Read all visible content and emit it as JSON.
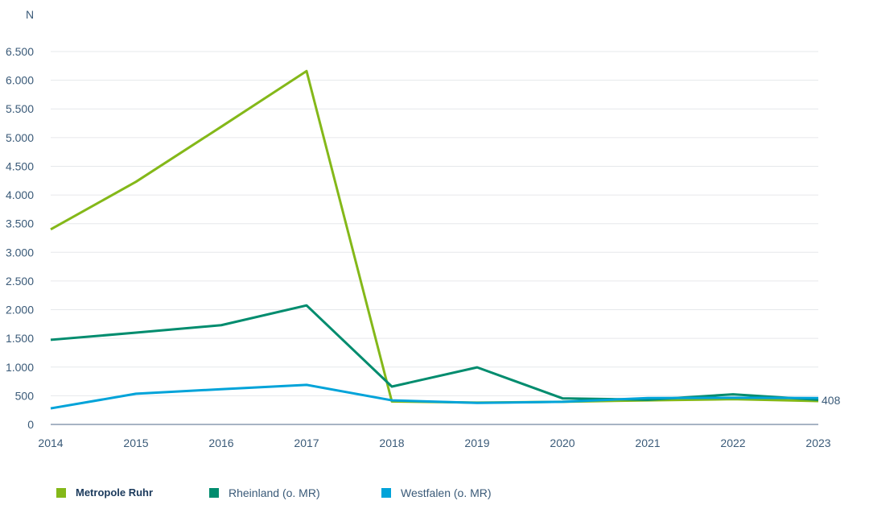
{
  "chart_data": {
    "type": "line",
    "ylabel": "N",
    "x": [
      "2014",
      "2015",
      "2016",
      "2017",
      "2018",
      "2019",
      "2020",
      "2021",
      "2022",
      "2023"
    ],
    "ylim": [
      0,
      6500
    ],
    "yticks": [
      0,
      500,
      1000,
      1500,
      2000,
      2500,
      3000,
      3500,
      4000,
      4500,
      5000,
      5500,
      6000,
      6500
    ],
    "ytick_labels": [
      "0",
      "500",
      "1.000",
      "1.500",
      "2.000",
      "2.500",
      "3.000",
      "3.500",
      "4.000",
      "4.500",
      "5.000",
      "5.500",
      "6.000",
      "6.500"
    ],
    "grid": true,
    "legend_position": "bottom",
    "series": [
      {
        "name": "Metropole Ruhr",
        "color": "#84b819",
        "values": [
          3400,
          4230,
          5190,
          6160,
          400,
          380,
          395,
          420,
          440,
          408
        ]
      },
      {
        "name": "Rheinland (o. MR)",
        "color": "#008c6e",
        "values": [
          1475,
          1600,
          1730,
          2075,
          660,
          995,
          455,
          430,
          525,
          430
        ]
      },
      {
        "name": "Westfalen (o. MR)",
        "color": "#00a3d9",
        "values": [
          280,
          535,
          615,
          690,
          420,
          375,
          395,
          460,
          465,
          460
        ]
      }
    ],
    "annotation": "408"
  }
}
